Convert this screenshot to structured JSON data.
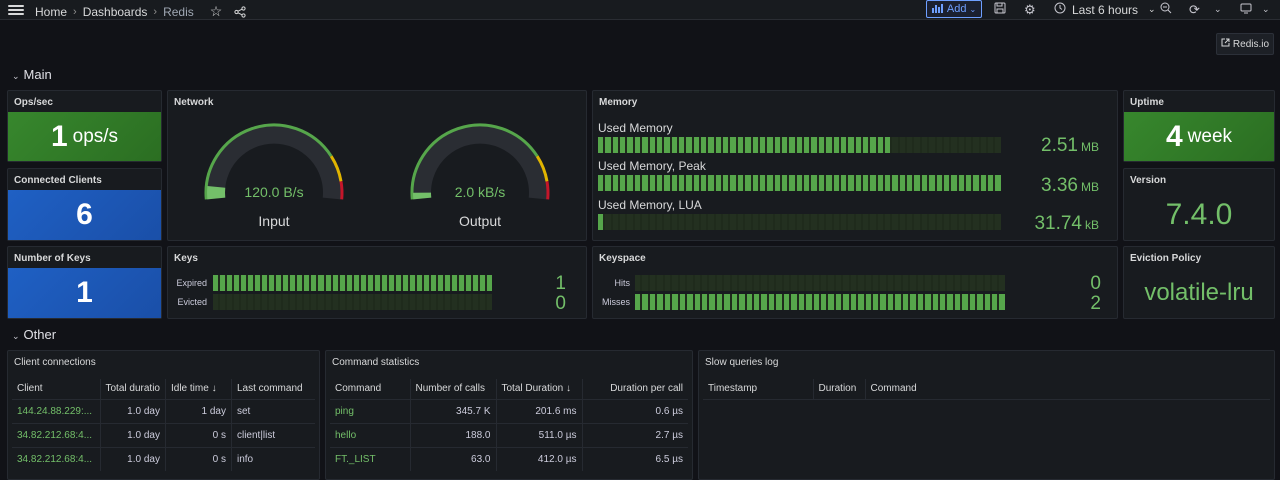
{
  "topbar": {
    "breadcrumbs": [
      "Home",
      "Dashboards",
      "Redis"
    ],
    "add_label": "Add",
    "time_range": "Last 6 hours"
  },
  "sections": {
    "main": "Main",
    "other": "Other"
  },
  "link": {
    "label": "Redis.io"
  },
  "ops": {
    "title": "Ops/sec",
    "value": "1",
    "unit": "ops/s"
  },
  "clients": {
    "title": "Connected Clients",
    "value": "6"
  },
  "keys_count": {
    "title": "Number of Keys",
    "value": "1"
  },
  "network": {
    "title": "Network",
    "input": {
      "label": "Input",
      "value": "120.0 B/s",
      "fraction": 0.06
    },
    "output": {
      "label": "Output",
      "value": "2.0 kB/s",
      "fraction": 0.03
    }
  },
  "memory": {
    "title": "Memory",
    "rows": [
      {
        "label": "Used Memory",
        "value": "2.51",
        "unit": "MB",
        "fraction": 0.72
      },
      {
        "label": "Used Memory, Peak",
        "value": "3.36",
        "unit": "MB",
        "fraction": 1.0
      },
      {
        "label": "Used Memory, LUA",
        "value": "31.74",
        "unit": "kB",
        "fraction": 0.01
      }
    ]
  },
  "uptime": {
    "title": "Uptime",
    "value": "4",
    "unit": "week"
  },
  "version": {
    "title": "Version",
    "value": "7.4.0"
  },
  "eviction": {
    "title": "Eviction Policy",
    "value": "volatile-lru"
  },
  "keys": {
    "title": "Keys",
    "rows": [
      {
        "label": "Expired",
        "value": "1",
        "fraction": 1.0
      },
      {
        "label": "Evicted",
        "value": "0",
        "fraction": 0.0
      }
    ]
  },
  "keyspace": {
    "title": "Keyspace",
    "rows": [
      {
        "label": "Hits",
        "value": "0",
        "fraction": 0.0
      },
      {
        "label": "Misses",
        "value": "2",
        "fraction": 1.0
      }
    ]
  },
  "client_connections": {
    "title": "Client connections",
    "columns": [
      "Client",
      "Total duratio",
      "Idle time",
      "Last command"
    ],
    "rows": [
      [
        "144.24.88.229:...",
        "1.0 day",
        "1 day",
        "set"
      ],
      [
        "34.82.212.68:4...",
        "1.0 day",
        "0 s",
        "client|list"
      ],
      [
        "34.82.212.68:4...",
        "1.0 day",
        "0 s",
        "info"
      ]
    ]
  },
  "command_stats": {
    "title": "Command statistics",
    "columns": [
      "Command",
      "Number of calls",
      "Total Duration",
      "Duration per call"
    ],
    "rows": [
      [
        "ping",
        "345.7 K",
        "201.6 ms",
        "0.6 µs"
      ],
      [
        "hello",
        "188.0",
        "511.0 µs",
        "2.7 µs"
      ],
      [
        "FT._LIST",
        "63.0",
        "412.0 µs",
        "6.5 µs"
      ]
    ]
  },
  "slow_queries": {
    "title": "Slow queries log",
    "columns": [
      "Timestamp",
      "Duration",
      "Command"
    ]
  },
  "colors": {
    "green": "#73bf69",
    "blue": "#1f60c4",
    "accent": "#6e9fff"
  }
}
